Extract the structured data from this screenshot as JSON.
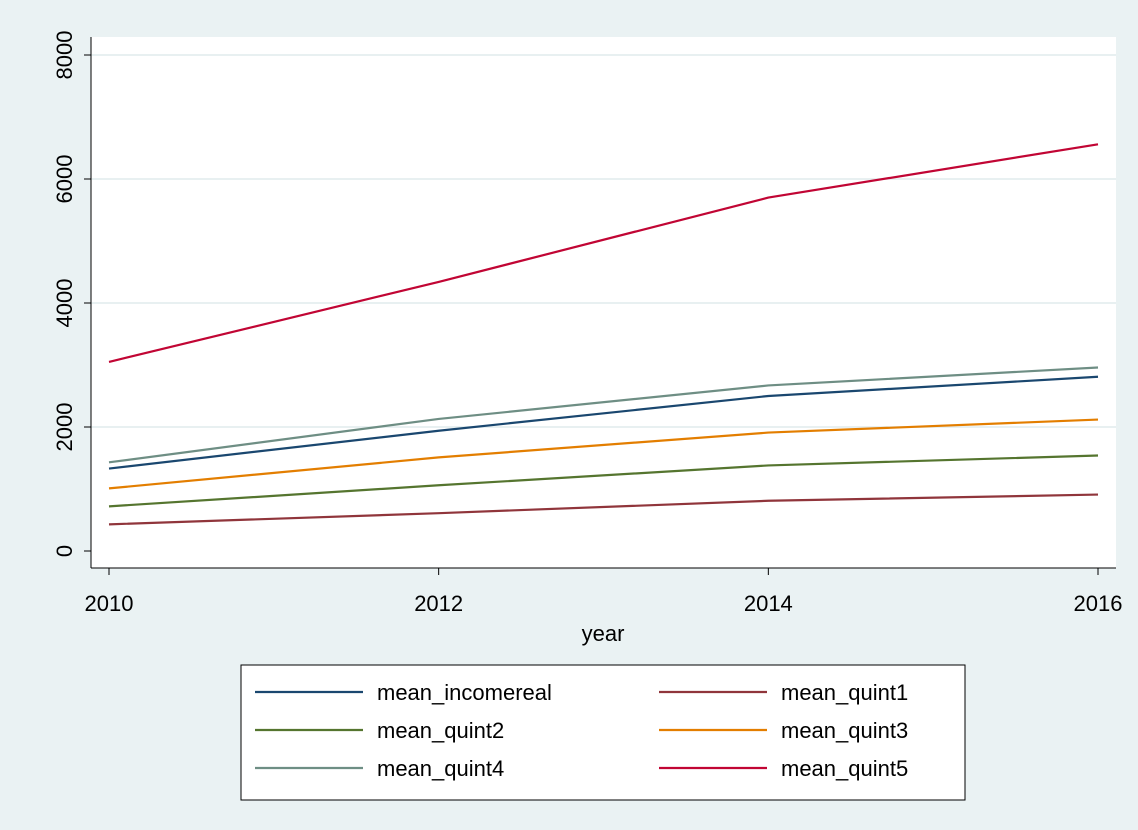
{
  "chart_data": {
    "type": "line",
    "title": "",
    "xlabel": "year",
    "ylabel": "",
    "x": [
      2010,
      2012,
      2014,
      2016
    ],
    "xlim": [
      2010,
      2016
    ],
    "ylim": [
      0,
      8000
    ],
    "x_ticks": [
      "2010",
      "2012",
      "2014",
      "2016"
    ],
    "y_ticks": [
      "0",
      "2000",
      "4000",
      "6000",
      "8000"
    ],
    "grid": "horizontal",
    "legend_position": "bottom",
    "background": "#eaf2f3",
    "plot_background": "#ffffff",
    "series": [
      {
        "name": "mean_incomereal",
        "color": "#1a476f",
        "values": [
          1330,
          1940,
          2500,
          2810
        ]
      },
      {
        "name": "mean_quint1",
        "color": "#90353b",
        "values": [
          430,
          610,
          810,
          910
        ]
      },
      {
        "name": "mean_quint2",
        "color": "#55752f",
        "values": [
          720,
          1060,
          1380,
          1540
        ]
      },
      {
        "name": "mean_quint3",
        "color": "#e37e00",
        "values": [
          1010,
          1510,
          1910,
          2120
        ]
      },
      {
        "name": "mean_quint4",
        "color": "#6e8e84",
        "values": [
          1430,
          2130,
          2670,
          2960
        ]
      },
      {
        "name": "mean_quint5",
        "color": "#c10534",
        "values": [
          3050,
          4340,
          5700,
          6560
        ]
      }
    ]
  }
}
